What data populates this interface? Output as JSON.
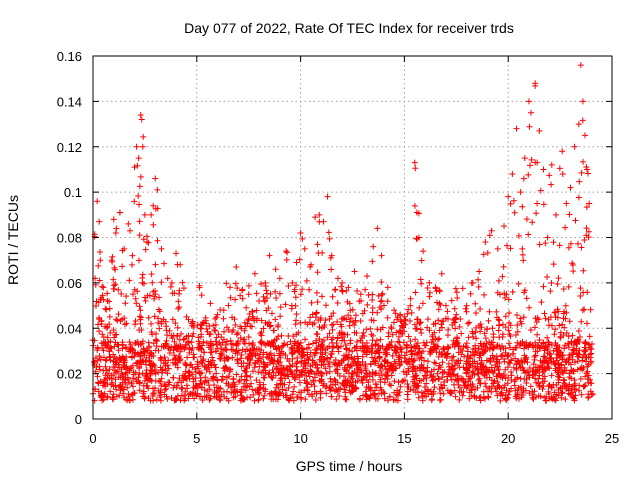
{
  "chart_data": {
    "type": "scatter",
    "title": "Day 077 of 2022, Rate Of TEC Index for receiver trds",
    "xlabel": "GPS time / hours",
    "ylabel": "ROTI / TECUs",
    "xlim": [
      0,
      25
    ],
    "ylim": [
      0,
      0.16
    ],
    "xticks": [
      0,
      5,
      10,
      15,
      20,
      25
    ],
    "yticks": [
      0,
      0.02,
      0.04,
      0.06,
      0.08,
      0.1,
      0.12,
      0.14,
      0.16
    ],
    "xtick_labels": [
      "0",
      "5",
      "10",
      "15",
      "20",
      "25"
    ],
    "ytick_labels": [
      "0",
      "0.02",
      "0.04",
      "0.06",
      "0.08",
      "0.1",
      "0.12",
      "0.14",
      "0.16"
    ],
    "grid": true,
    "marker": "plus",
    "color": "#ff0000",
    "series": [
      {
        "points": [
          [
            0.1,
            0.062
          ],
          [
            0.2,
            0.096
          ],
          [
            0.3,
            0.087
          ],
          [
            0.35,
            0.07
          ],
          [
            0.5,
            0.058
          ],
          [
            0.7,
            0.052
          ],
          [
            0.9,
            0.07
          ],
          [
            1.0,
            0.088
          ],
          [
            1.1,
            0.082
          ],
          [
            1.3,
            0.091
          ],
          [
            1.5,
            0.075
          ],
          [
            1.7,
            0.086
          ],
          [
            1.9,
            0.072
          ],
          [
            2.0,
            0.111
          ],
          [
            2.1,
            0.12
          ],
          [
            2.2,
            0.115
          ],
          [
            2.3,
            0.134
          ],
          [
            2.35,
            0.132
          ],
          [
            2.4,
            0.12
          ],
          [
            2.5,
            0.09
          ],
          [
            2.6,
            0.078
          ],
          [
            2.8,
            0.09
          ],
          [
            2.9,
            0.094
          ],
          [
            3.0,
            0.106
          ],
          [
            3.1,
            0.101
          ],
          [
            3.3,
            0.075
          ],
          [
            3.6,
            0.062
          ],
          [
            3.8,
            0.06
          ],
          [
            4.0,
            0.073
          ],
          [
            4.2,
            0.068
          ],
          [
            4.5,
            0.045
          ],
          [
            4.8,
            0.043
          ],
          [
            5.2,
            0.04
          ],
          [
            5.6,
            0.041
          ],
          [
            6.0,
            0.046
          ],
          [
            6.3,
            0.048
          ],
          [
            6.6,
            0.058
          ],
          [
            6.9,
            0.067
          ],
          [
            7.2,
            0.057
          ],
          [
            7.5,
            0.055
          ],
          [
            7.8,
            0.064
          ],
          [
            8.0,
            0.052
          ],
          [
            8.3,
            0.06
          ],
          [
            8.5,
            0.072
          ],
          [
            8.8,
            0.066
          ],
          [
            9.0,
            0.062
          ],
          [
            9.3,
            0.074
          ],
          [
            9.6,
            0.06
          ],
          [
            9.8,
            0.069
          ],
          [
            10.0,
            0.082
          ],
          [
            10.2,
            0.075
          ],
          [
            10.5,
            0.068
          ],
          [
            10.7,
            0.089
          ],
          [
            10.9,
            0.09
          ],
          [
            11.1,
            0.087
          ],
          [
            11.3,
            0.098
          ],
          [
            11.5,
            0.072
          ],
          [
            11.8,
            0.062
          ],
          [
            12.0,
            0.06
          ],
          [
            12.3,
            0.058
          ],
          [
            12.6,
            0.065
          ],
          [
            12.9,
            0.055
          ],
          [
            13.2,
            0.063
          ],
          [
            13.5,
            0.076
          ],
          [
            13.7,
            0.084
          ],
          [
            13.9,
            0.072
          ],
          [
            14.2,
            0.058
          ],
          [
            14.5,
            0.048
          ],
          [
            14.8,
            0.046
          ],
          [
            15.0,
            0.045
          ],
          [
            15.3,
            0.053
          ],
          [
            15.5,
            0.113
          ],
          [
            15.6,
            0.091
          ],
          [
            15.7,
            0.08
          ],
          [
            15.9,
            0.074
          ],
          [
            16.2,
            0.06
          ],
          [
            16.5,
            0.058
          ],
          [
            16.8,
            0.064
          ],
          [
            17.0,
            0.05
          ],
          [
            17.5,
            0.046
          ],
          [
            18.0,
            0.05
          ],
          [
            18.3,
            0.06
          ],
          [
            18.6,
            0.065
          ],
          [
            18.9,
            0.078
          ],
          [
            19.2,
            0.083
          ],
          [
            19.5,
            0.075
          ],
          [
            19.8,
            0.085
          ],
          [
            20.0,
            0.098
          ],
          [
            20.2,
            0.108
          ],
          [
            20.4,
            0.128
          ],
          [
            20.6,
            0.1
          ],
          [
            20.8,
            0.115
          ],
          [
            21.0,
            0.14
          ],
          [
            21.1,
            0.135
          ],
          [
            21.3,
            0.148
          ],
          [
            21.5,
            0.127
          ],
          [
            21.7,
            0.11
          ],
          [
            21.9,
            0.08
          ],
          [
            22.1,
            0.112
          ],
          [
            22.3,
            0.09
          ],
          [
            22.6,
            0.118
          ],
          [
            22.8,
            0.095
          ],
          [
            23.0,
            0.102
          ],
          [
            23.2,
            0.12
          ],
          [
            23.4,
            0.13
          ],
          [
            23.5,
            0.156
          ],
          [
            23.6,
            0.14
          ],
          [
            23.7,
            0.125
          ],
          [
            23.8,
            0.11
          ],
          [
            23.9,
            0.095
          ]
        ]
      }
    ]
  }
}
